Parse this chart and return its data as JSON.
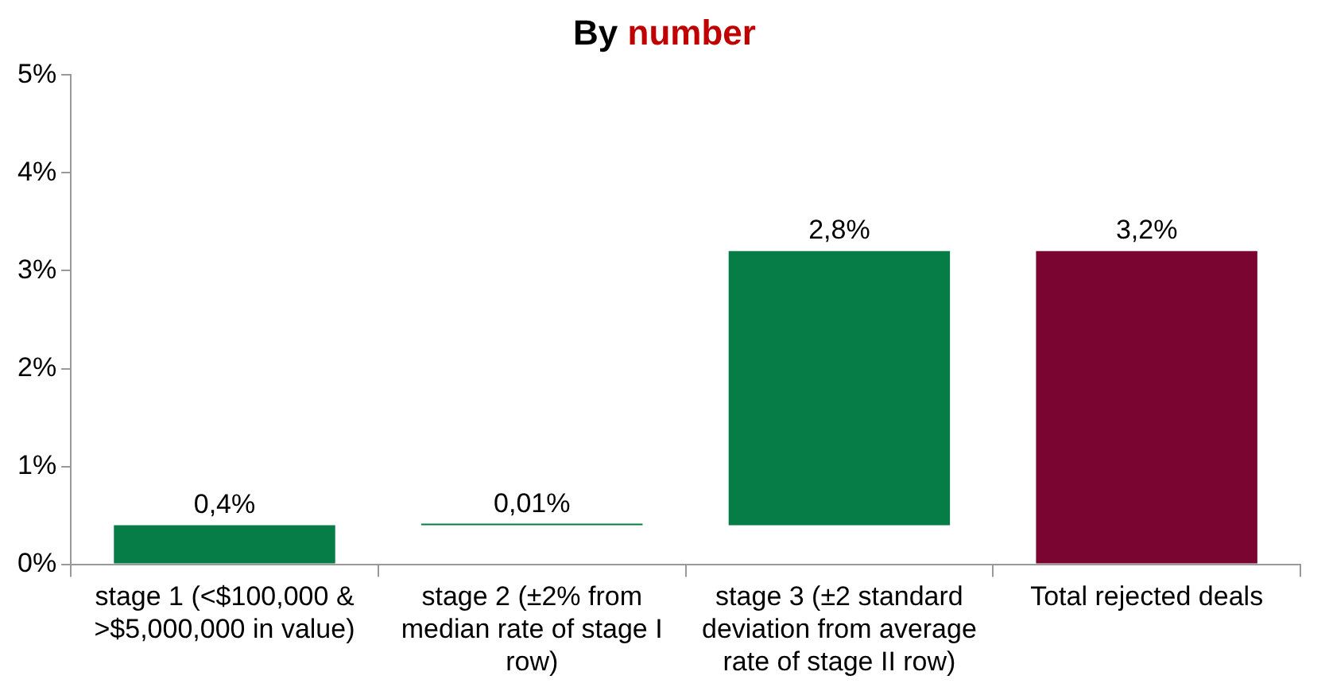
{
  "chart_data": {
    "type": "bar",
    "title": "By number",
    "categories": [
      "stage 1 (<$100,000 & >$5,000,000 in value)",
      "stage 2 (±2% from median rate of stage I row)",
      "stage 3 (±2 standard deviation from average rate of stage II row)",
      "Total rejected deals"
    ],
    "values": [
      0.4,
      0.01,
      2.8,
      3.2
    ],
    "base": [
      0,
      0.4,
      0.4,
      0
    ],
    "colors": [
      "#067d46",
      "#067d46",
      "#067d46",
      "#7a0530"
    ],
    "value_labels": [
      "0,4%",
      "0,01%",
      "2,8%",
      "3,2%"
    ],
    "ylim": [
      0,
      5
    ],
    "yticks": [
      {
        "value": 0,
        "label": "0%"
      },
      {
        "value": 1,
        "label": "1%"
      },
      {
        "value": 2,
        "label": "2%"
      },
      {
        "value": 3,
        "label": "3%"
      },
      {
        "value": 4,
        "label": "4%"
      },
      {
        "value": 5,
        "label": "5%"
      }
    ],
    "grid": false,
    "legend": false
  }
}
